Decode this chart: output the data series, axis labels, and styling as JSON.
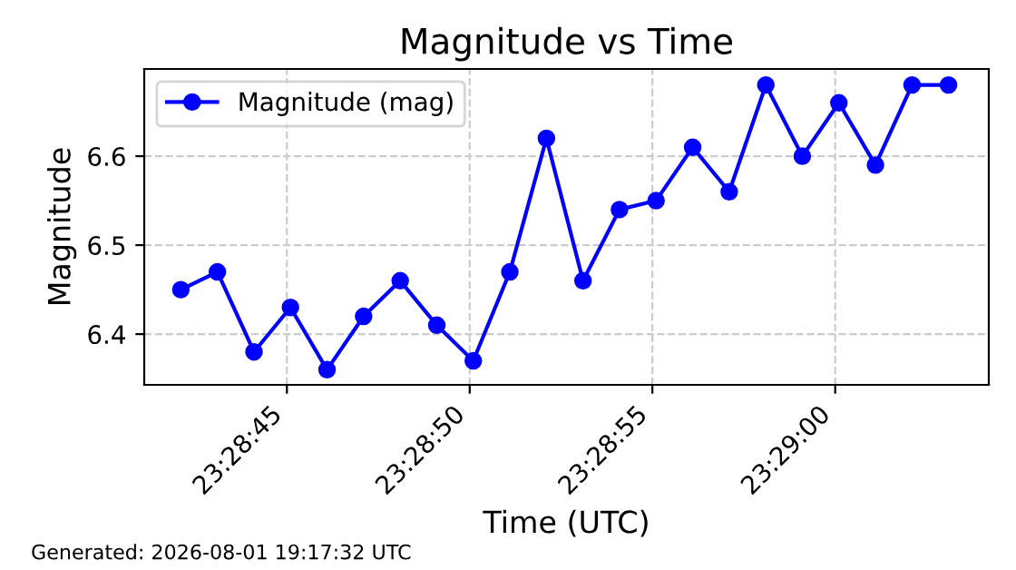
{
  "chart_data": {
    "type": "line",
    "title": "Magnitude vs Time",
    "xlabel": "Time (UTC)",
    "ylabel": "Magnitude",
    "x": [
      23.478361,
      23.478639,
      23.478917,
      23.479194,
      23.479472,
      23.47975,
      23.480028,
      23.480306,
      23.480583,
      23.480861,
      23.481139,
      23.481417,
      23.481694,
      23.481972,
      23.48225,
      23.482528,
      23.482806,
      23.483083,
      23.483361,
      23.483639,
      23.483917,
      23.484194
    ],
    "series": [
      {
        "name": "Magnitude (mag)",
        "color": "#0000ff",
        "values": [
          6.45,
          6.47,
          6.38,
          6.43,
          6.36,
          6.42,
          6.46,
          6.41,
          6.37,
          6.47,
          6.62,
          6.46,
          6.54,
          6.55,
          6.61,
          6.56,
          6.68,
          6.6,
          6.66,
          6.59,
          6.68,
          6.68
        ]
      }
    ],
    "xlim": [
      23.478083,
      23.4845
    ],
    "xticks": [
      {
        "value": 23.479167,
        "label": "23:28:45"
      },
      {
        "value": 23.480556,
        "label": "23:28:50"
      },
      {
        "value": 23.481944,
        "label": "23:28:55"
      },
      {
        "value": 23.483333,
        "label": "23:29:00"
      }
    ],
    "ylim": [
      6.343,
      6.698
    ],
    "yticks": [
      6.4,
      6.5,
      6.6
    ],
    "grid": true,
    "legend": "top left",
    "marker": "circle",
    "line_style": "solid",
    "annotations": [
      "Generated: 2026-08-01 19:17:32 UTC"
    ]
  }
}
